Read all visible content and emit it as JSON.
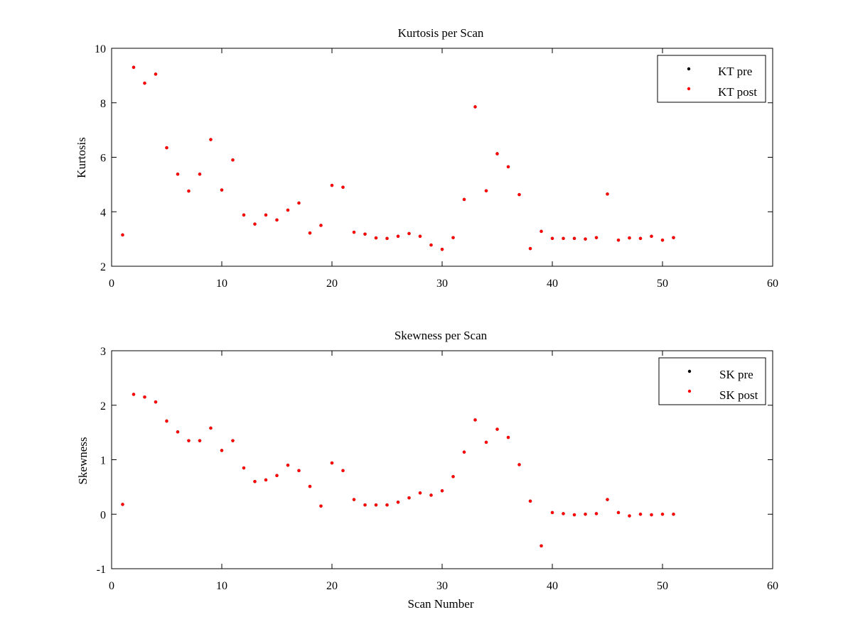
{
  "chart_data": [
    {
      "type": "scatter",
      "title": "Kurtosis per Scan",
      "xlabel": "",
      "ylabel": "Kurtosis",
      "xlim": [
        0,
        60
      ],
      "ylim": [
        2,
        10
      ],
      "xticks": [
        0,
        10,
        20,
        30,
        40,
        50,
        60
      ],
      "yticks": [
        2,
        4,
        6,
        8,
        10
      ],
      "grid": false,
      "legend_position": "top-right",
      "series": [
        {
          "name": "KT pre",
          "color": "#000000",
          "x": [
            1,
            2,
            3,
            4,
            5,
            6,
            7,
            8,
            9,
            10,
            11,
            12,
            13,
            14,
            15,
            16,
            17,
            18,
            19,
            20,
            21,
            22,
            23,
            24,
            25,
            26,
            27,
            28,
            29,
            30,
            31,
            32,
            33,
            34,
            35,
            36,
            37,
            38,
            39,
            40,
            41,
            42,
            43,
            44,
            45,
            46,
            47,
            48,
            49,
            50,
            51
          ],
          "y": [
            3.15,
            9.3,
            8.72,
            9.05,
            6.35,
            5.38,
            4.76,
            5.38,
            6.65,
            4.8,
            5.9,
            3.88,
            3.55,
            3.88,
            3.7,
            4.06,
            4.32,
            3.22,
            3.5,
            4.97,
            4.9,
            3.25,
            3.18,
            3.04,
            3.02,
            3.1,
            3.2,
            3.1,
            2.78,
            2.62,
            3.05,
            4.45,
            7.85,
            4.77,
            6.13,
            5.65,
            4.63,
            2.65,
            3.28,
            3.02,
            3.02,
            3.02,
            3.0,
            3.05,
            4.65,
            2.96,
            3.04,
            3.02,
            3.1,
            2.96,
            3.05
          ]
        },
        {
          "name": "KT post",
          "color": "#ff0000",
          "x": [
            1,
            2,
            3,
            4,
            5,
            6,
            7,
            8,
            9,
            10,
            11,
            12,
            13,
            14,
            15,
            16,
            17,
            18,
            19,
            20,
            21,
            22,
            23,
            24,
            25,
            26,
            27,
            28,
            29,
            30,
            31,
            32,
            33,
            34,
            35,
            36,
            37,
            38,
            39,
            40,
            41,
            42,
            43,
            44,
            45,
            46,
            47,
            48,
            49,
            50,
            51
          ],
          "y": [
            3.15,
            9.3,
            8.72,
            9.05,
            6.35,
            5.38,
            4.76,
            5.38,
            6.65,
            4.8,
            5.9,
            3.88,
            3.55,
            3.88,
            3.7,
            4.06,
            4.32,
            3.22,
            3.5,
            4.97,
            4.9,
            3.25,
            3.18,
            3.04,
            3.02,
            3.1,
            3.2,
            3.1,
            2.78,
            2.62,
            3.05,
            4.45,
            7.85,
            4.77,
            6.13,
            5.65,
            4.63,
            2.65,
            3.28,
            3.02,
            3.02,
            3.02,
            3.0,
            3.05,
            4.65,
            2.96,
            3.04,
            3.02,
            3.1,
            2.96,
            3.05
          ]
        }
      ]
    },
    {
      "type": "scatter",
      "title": "Skewness per Scan",
      "xlabel": "Scan Number",
      "ylabel": "Skewness",
      "xlim": [
        0,
        60
      ],
      "ylim": [
        -1,
        3
      ],
      "xticks": [
        0,
        10,
        20,
        30,
        40,
        50,
        60
      ],
      "yticks": [
        -1,
        0,
        1,
        2,
        3
      ],
      "grid": false,
      "legend_position": "top-right",
      "series": [
        {
          "name": "SK pre",
          "color": "#000000",
          "x": [
            1,
            2,
            3,
            4,
            5,
            6,
            7,
            8,
            9,
            10,
            11,
            12,
            13,
            14,
            15,
            16,
            17,
            18,
            19,
            20,
            21,
            22,
            23,
            24,
            25,
            26,
            27,
            28,
            29,
            30,
            31,
            32,
            33,
            34,
            35,
            36,
            37,
            38,
            39,
            40,
            41,
            42,
            43,
            44,
            45,
            46,
            47,
            48,
            49,
            50,
            51
          ],
          "y": [
            0.18,
            2.2,
            2.15,
            2.06,
            1.71,
            1.51,
            1.35,
            1.35,
            1.58,
            1.17,
            1.35,
            0.85,
            0.6,
            0.63,
            0.71,
            0.9,
            0.8,
            0.51,
            0.15,
            0.94,
            0.8,
            0.27,
            0.17,
            0.17,
            0.17,
            0.22,
            0.3,
            0.39,
            0.35,
            0.43,
            0.69,
            1.14,
            1.73,
            1.32,
            1.56,
            1.41,
            0.91,
            0.24,
            -0.58,
            0.03,
            0.01,
            -0.01,
            0.0,
            0.01,
            0.27,
            0.03,
            -0.03,
            0.0,
            -0.01,
            0.0,
            0.0
          ]
        },
        {
          "name": "SK post",
          "color": "#ff0000",
          "x": [
            1,
            2,
            3,
            4,
            5,
            6,
            7,
            8,
            9,
            10,
            11,
            12,
            13,
            14,
            15,
            16,
            17,
            18,
            19,
            20,
            21,
            22,
            23,
            24,
            25,
            26,
            27,
            28,
            29,
            30,
            31,
            32,
            33,
            34,
            35,
            36,
            37,
            38,
            39,
            40,
            41,
            42,
            43,
            44,
            45,
            46,
            47,
            48,
            49,
            50,
            51
          ],
          "y": [
            0.18,
            2.2,
            2.15,
            2.06,
            1.71,
            1.51,
            1.35,
            1.35,
            1.58,
            1.17,
            1.35,
            0.85,
            0.6,
            0.63,
            0.71,
            0.9,
            0.8,
            0.51,
            0.15,
            0.94,
            0.8,
            0.27,
            0.17,
            0.17,
            0.17,
            0.22,
            0.3,
            0.39,
            0.35,
            0.43,
            0.69,
            1.14,
            1.73,
            1.32,
            1.56,
            1.41,
            0.91,
            0.24,
            -0.58,
            0.03,
            0.01,
            -0.01,
            0.0,
            0.01,
            0.27,
            0.03,
            -0.03,
            0.0,
            -0.01,
            0.0,
            0.0
          ]
        }
      ]
    }
  ]
}
